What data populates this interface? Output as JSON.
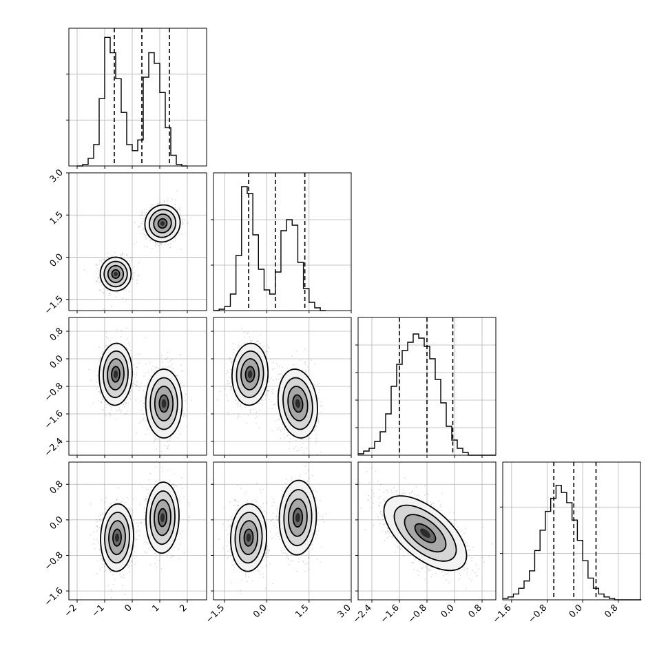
{
  "chart_data": {
    "type": "corner",
    "grid": true,
    "n_params": 4,
    "params": [
      {
        "index": 0,
        "range": [
          -2.3,
          2.7
        ],
        "x_ticks": [
          -2,
          -1,
          0,
          1,
          2
        ],
        "x_tick_labels": [
          "−2",
          "−1",
          "0",
          "1",
          "2"
        ],
        "quantile_lines": [
          -0.65,
          0.35,
          1.35
        ],
        "hist_bins_edges_start": -2.0,
        "hist_bin_width": 0.2,
        "hist_counts": [
          0,
          1,
          5,
          14,
          44,
          84,
          74,
          57,
          35,
          14,
          10,
          17,
          58,
          74,
          67,
          48,
          25,
          7,
          1,
          0
        ],
        "hist_y_max": 90,
        "hist_y_ticks": [
          30,
          60
        ]
      },
      {
        "index": 1,
        "range": [
          -1.9,
          3.0
        ],
        "x_ticks": [
          -1.5,
          0.0,
          1.5,
          3.0
        ],
        "x_tick_labels": [
          "−1.5",
          "0.0",
          "1.5",
          "3.0"
        ],
        "y_ticks": [
          -1.5,
          0.0,
          1.5,
          3.0
        ],
        "y_tick_labels": [
          "−1.5",
          "0.0",
          "1.5",
          "3.0"
        ],
        "quantile_lines": [
          -0.65,
          0.3,
          1.35
        ],
        "hist_bins_edges_start": -1.9,
        "hist_bin_width": 0.2,
        "hist_counts": [
          0,
          1,
          3,
          12,
          40,
          90,
          85,
          55,
          30,
          15,
          12,
          28,
          58,
          66,
          62,
          35,
          16,
          6,
          2,
          0
        ],
        "hist_y_max": 100,
        "hist_y_ticks": [
          33,
          66
        ]
      },
      {
        "index": 2,
        "range": [
          -2.8,
          1.2
        ],
        "x_ticks": [
          -2.4,
          -1.6,
          -0.8,
          0.0,
          0.8
        ],
        "x_tick_labels": [
          "−2.4",
          "−1.6",
          "−0.8",
          "0.0",
          "0.8"
        ],
        "y_ticks": [
          -2.4,
          -1.6,
          -0.8,
          0.0,
          0.8
        ],
        "y_tick_labels": [
          "−2.4",
          "−1.6",
          "−0.8",
          "0.0",
          "0.8"
        ],
        "quantile_lines": [
          -1.6,
          -0.8,
          -0.05
        ],
        "hist_bins_edges_start": -2.8,
        "hist_bin_width": 0.16,
        "hist_counts": [
          1,
          3,
          5,
          10,
          17,
          30,
          50,
          66,
          76,
          82,
          88,
          85,
          79,
          70,
          55,
          38,
          21,
          11,
          5,
          2,
          0,
          0,
          0,
          0,
          0
        ],
        "hist_y_max": 100,
        "hist_y_ticks": [
          20,
          40,
          60,
          80
        ]
      },
      {
        "index": 3,
        "range": [
          -1.8,
          1.3
        ],
        "x_ticks": [
          -1.6,
          -0.8,
          0.0,
          0.8
        ],
        "x_tick_labels": [
          "−1.6",
          "−0.8",
          "0.0",
          "0.8"
        ],
        "y_ticks": [
          -1.6,
          -0.8,
          0.0,
          0.8
        ],
        "y_tick_labels": [
          "−1.6",
          "−0.8",
          "0.0",
          "0.8"
        ],
        "quantile_lines": [
          -0.65,
          -0.2,
          0.3
        ],
        "hist_bins_edges_start": -1.8,
        "hist_bin_width": 0.12,
        "hist_counts": [
          1,
          2,
          4,
          8,
          13,
          20,
          34,
          48,
          61,
          70,
          79,
          74,
          67,
          55,
          41,
          27,
          15,
          8,
          4,
          2,
          1,
          0,
          0,
          0,
          0,
          0
        ],
        "hist_y_max": 95,
        "hist_y_ticks": [
          32,
          64
        ]
      }
    ],
    "clusters_2d": {
      "1-0": [
        {
          "mean": [
            -0.6,
            -0.6
          ],
          "sd": [
            0.28,
            0.3
          ],
          "rho": 0.0
        },
        {
          "mean": [
            1.1,
            1.2
          ],
          "sd": [
            0.32,
            0.33
          ],
          "rho": 0.05
        }
      ],
      "2-0": [
        {
          "mean": [
            -0.6,
            -0.45
          ],
          "sd": [
            0.3,
            0.45
          ],
          "rho": 0.05
        },
        {
          "mean": [
            1.15,
            -1.3
          ],
          "sd": [
            0.33,
            0.5
          ],
          "rho": 0.0
        }
      ],
      "2-1": [
        {
          "mean": [
            -0.6,
            -0.45
          ],
          "sd": [
            0.32,
            0.45
          ],
          "rho": 0.05
        },
        {
          "mean": [
            1.1,
            -1.3
          ],
          "sd": [
            0.35,
            0.5
          ],
          "rho": -0.15
        }
      ],
      "3-0": [
        {
          "mean": [
            -0.55,
            -0.4
          ],
          "sd": [
            0.3,
            0.38
          ],
          "rho": 0.05
        },
        {
          "mean": [
            1.1,
            0.05
          ],
          "sd": [
            0.3,
            0.4
          ],
          "rho": 0.05
        }
      ],
      "3-1": [
        {
          "mean": [
            -0.65,
            -0.4
          ],
          "sd": [
            0.32,
            0.38
          ],
          "rho": 0.05
        },
        {
          "mean": [
            1.1,
            0.05
          ],
          "sd": [
            0.33,
            0.42
          ],
          "rho": 0.05
        }
      ],
      "3-2": [
        {
          "mean": [
            -0.85,
            -0.3
          ],
          "sd": [
            0.6,
            0.42
          ],
          "rho": -0.6
        }
      ]
    },
    "contour_levels_sigma": [
      0.5,
      1.0,
      1.5,
      2.0
    ],
    "colors": {
      "line": "#000000",
      "grid": "#b0b0b0",
      "density_dark": "#2b2b2b",
      "density_light": "#f2f2f2",
      "background": "#ffffff"
    }
  }
}
